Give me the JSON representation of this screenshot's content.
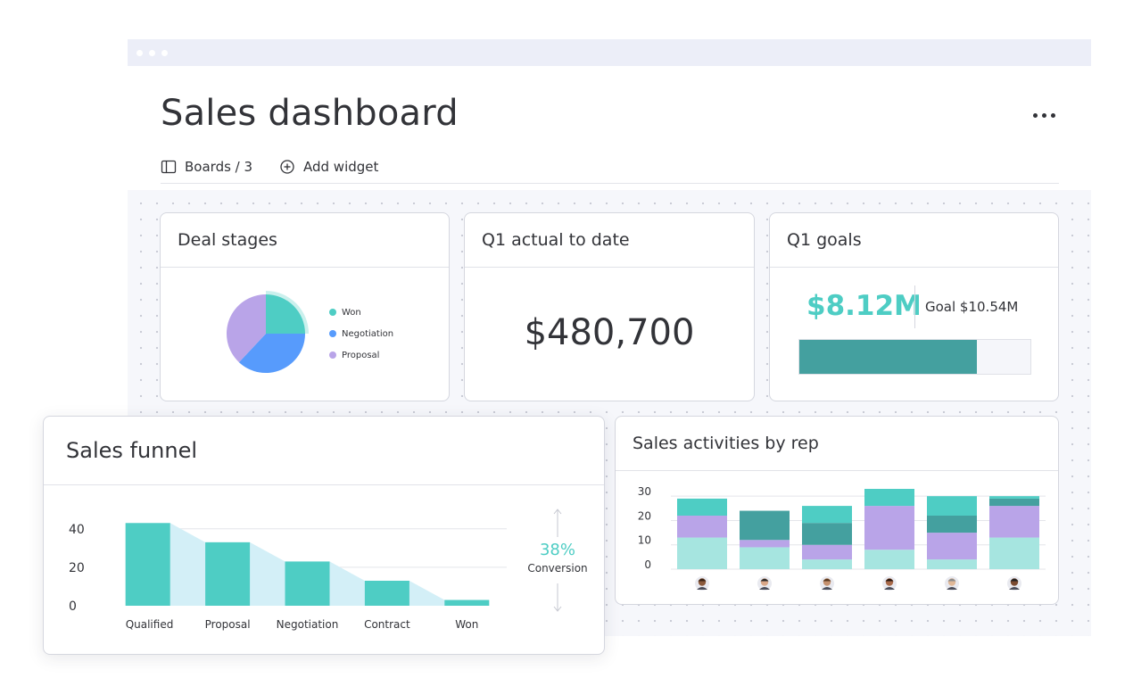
{
  "page": {
    "title": "Sales dashboard"
  },
  "toolbar": {
    "boards_label": "Boards / 3",
    "add_widget_label": "Add widget"
  },
  "widgets": {
    "deal_stages": {
      "title": "Deal stages"
    },
    "q1_actual": {
      "title": "Q1 actual to date",
      "value": "$480,700"
    },
    "q1_goals": {
      "title": "Q1 goals",
      "actual": "$8.12M",
      "goal_label": "Goal $10.54M",
      "progress": 0.77
    },
    "sales_funnel": {
      "title": "Sales funnel",
      "conversion_value": "38%",
      "conversion_label": "Conversion"
    },
    "sales_activities": {
      "title": "Sales activities by rep"
    }
  },
  "colors": {
    "teal": "#4ecdc4",
    "dark_teal": "#44a09f",
    "purple": "#b9a4e8",
    "blue": "#579bfc",
    "light_teal": "#a6e5e0",
    "funnel_shade": "#d3eff7"
  },
  "chart_data": [
    {
      "type": "pie",
      "labels": [
        "Won",
        "Negotiation",
        "Proposal"
      ],
      "values": [
        25,
        37,
        38
      ],
      "colors": [
        "#4ecdc4",
        "#579bfc",
        "#b9a4e8"
      ],
      "legend": "right"
    },
    {
      "type": "bar",
      "categories": [
        "Qualified",
        "Proposal",
        "Negotiation",
        "Contract",
        "Won"
      ],
      "values": [
        43,
        33,
        23,
        13,
        3
      ],
      "ylim": [
        0,
        45
      ],
      "yticks": [
        0,
        20,
        40
      ],
      "grid": true
    },
    {
      "type": "bar",
      "stacked": true,
      "categories": [
        "rep-1",
        "rep-2",
        "rep-3",
        "rep-4",
        "rep-5",
        "rep-6"
      ],
      "series": [
        {
          "color": "#a6e5e0",
          "values": [
            13,
            9,
            4,
            8,
            4,
            13
          ]
        },
        {
          "color": "#b9a4e8",
          "values": [
            9,
            3,
            6,
            18,
            11,
            13
          ]
        },
        {
          "color": "#44a09f",
          "values": [
            0,
            12,
            9,
            0,
            7,
            3
          ]
        },
        {
          "color": "#4ecdc4",
          "values": [
            7,
            0,
            7,
            7,
            8,
            1
          ]
        }
      ],
      "ylim": [
        0,
        33
      ],
      "yticks": [
        0,
        10,
        20,
        30
      ],
      "grid": true
    }
  ]
}
